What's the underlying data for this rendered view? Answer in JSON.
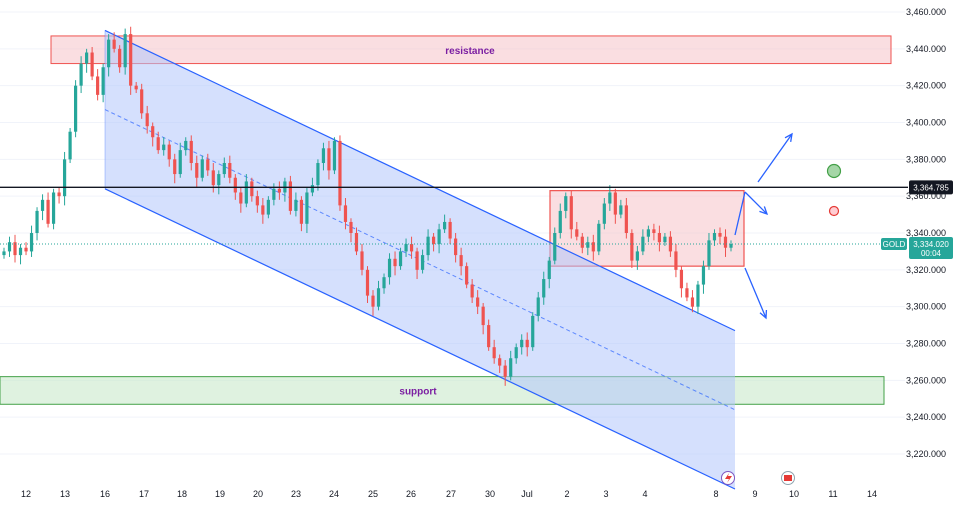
{
  "instrument": "GOLD",
  "price_axis": {
    "ticks": [
      "3,460.000",
      "3,440.000",
      "3,420.000",
      "3,400.000",
      "3,380.000",
      "3,360.000",
      "3,340.000",
      "3,320.000",
      "3,300.000",
      "3,280.000",
      "3,260.000",
      "3,240.000",
      "3,220.000"
    ]
  },
  "time_axis": {
    "ticks": [
      "12",
      "13",
      "16",
      "17",
      "18",
      "19",
      "20",
      "23",
      "24",
      "25",
      "26",
      "27",
      "30",
      "Jul",
      "2",
      "3",
      "4",
      "8",
      "9",
      "10",
      "11",
      "14"
    ]
  },
  "current_price": {
    "value": 3334.02,
    "label": "3,334.020",
    "countdown": "00:04",
    "symbol": "GOLD"
  },
  "horizontal_line": {
    "value": 3364.785,
    "label": "3,364.785"
  },
  "zones": {
    "resistance": {
      "label": "resistance",
      "top": 3447,
      "bottom": 3432
    },
    "support": {
      "label": "support",
      "top": 3262,
      "bottom": 3247
    },
    "consolidation": {
      "top": 3363,
      "bottom": 3322
    }
  },
  "colors": {
    "up": "#26a69a",
    "down": "#ef5350",
    "channel": "#2962ff",
    "channel_fill": "#b3c6fb",
    "resistance_fill": "#f6c3c8",
    "support_fill": "#c5e8c6",
    "label": "#7b1fa2"
  },
  "chart_data": {
    "type": "candlestick",
    "title": "",
    "series": [
      {
        "name": "GOLD",
        "closes": [
          3330,
          3335,
          3328,
          3332,
          3330,
          3340,
          3352,
          3358,
          3345,
          3362,
          3360,
          3380,
          3395,
          3420,
          3432,
          3438,
          3425,
          3415,
          3430,
          3445,
          3440,
          3430,
          3448,
          3420,
          3418,
          3405,
          3398,
          3392,
          3385,
          3388,
          3380,
          3372,
          3385,
          3390,
          3378,
          3370,
          3380,
          3374,
          3366,
          3372,
          3378,
          3370,
          3362,
          3356,
          3368,
          3360,
          3355,
          3350,
          3358,
          3364,
          3362,
          3368,
          3352,
          3358,
          3345,
          3362,
          3366,
          3378,
          3386,
          3374,
          3390,
          3355,
          3346,
          3340,
          3330,
          3320,
          3306,
          3300,
          3310,
          3316,
          3326,
          3322,
          3330,
          3334,
          3330,
          3320,
          3328,
          3338,
          3334,
          3342,
          3346,
          3337,
          3328,
          3322,
          3312,
          3305,
          3300,
          3290,
          3278,
          3272,
          3268,
          3262,
          3272,
          3278,
          3282,
          3278,
          3295,
          3305,
          3315,
          3325,
          3340,
          3352,
          3360,
          3342,
          3338,
          3332,
          3335,
          3330,
          3345,
          3356,
          3362,
          3350,
          3355,
          3340,
          3325,
          3330,
          3338,
          3342,
          3340,
          3335,
          3338,
          3330,
          3320,
          3310,
          3305,
          3300,
          3312,
          3322,
          3336,
          3340,
          3338,
          3332,
          3334
        ]
      }
    ],
    "y_range": [
      3206,
      3466
    ],
    "annotations": [
      "resistance",
      "support"
    ],
    "legend": "none"
  }
}
